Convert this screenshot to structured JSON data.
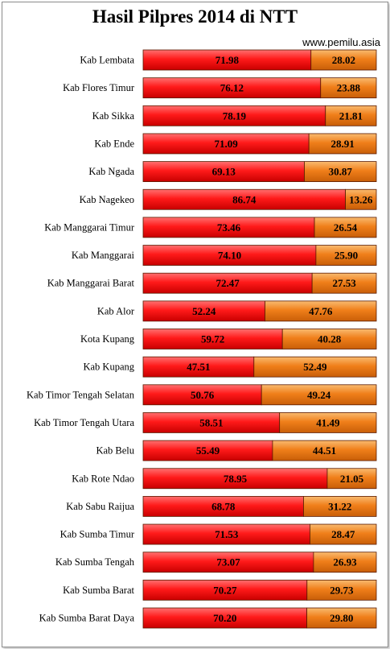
{
  "chart_data": {
    "type": "bar",
    "stacked": true,
    "orientation": "horizontal",
    "title": "Hasil Pilpres 2014 di NTT",
    "source": "www.pemilu.asia",
    "xlim": [
      0,
      100
    ],
    "legend": "none",
    "grid": false,
    "categories": [
      "Kab Lembata",
      "Kab Flores  Timur",
      "Kab Sikka",
      "Kab Ende",
      "Kab Ngada",
      "Kab Nagekeo",
      "Kab Manggarai  Timur",
      "Kab Manggarai",
      "Kab Manggarai  Barat",
      "Kab Alor",
      "Kota Kupang",
      "Kab Kupang",
      "Kab Timor Tengah  Selatan",
      "Kab Timor Tengah  Utara",
      "Kab Belu",
      "Kab Rote Ndao",
      "Kab Sabu  Raijua",
      "Kab Sumba  Timur",
      "Kab Sumba  Tengah",
      "Kab Sumba  Barat",
      "Kab Sumba Barat Daya"
    ],
    "series": [
      {
        "values": [
          71.98,
          76.12,
          78.19,
          71.09,
          69.13,
          86.74,
          73.46,
          74.1,
          72.47,
          52.24,
          59.72,
          47.51,
          50.76,
          58.51,
          55.49,
          78.95,
          68.78,
          71.53,
          73.07,
          70.27,
          70.2
        ],
        "labels": [
          "71.98",
          "76.12",
          "78.19",
          "71.09",
          "69.13",
          "86.74",
          "73.46",
          "74.10",
          "72.47",
          "52.24",
          "59.72",
          "47.51",
          "50.76",
          "58.51",
          "55.49",
          "78.95",
          "68.78",
          "71.53",
          "73.07",
          "70.27",
          "70.20"
        ],
        "color": "#ff1a1a",
        "color_light": "#ff6a6a"
      },
      {
        "values": [
          28.02,
          23.88,
          21.81,
          28.91,
          30.87,
          13.26,
          26.54,
          25.9,
          27.53,
          47.76,
          40.28,
          52.49,
          49.24,
          41.49,
          44.51,
          21.05,
          31.22,
          28.47,
          26.93,
          29.73,
          29.8
        ],
        "labels": [
          "28.02",
          "23.88",
          "21.81",
          "28.91",
          "30.87",
          "13.26",
          "26.54",
          "25.90",
          "27.53",
          "47.76",
          "40.28",
          "52.49",
          "49.24",
          "41.49",
          "44.51",
          "21.05",
          "31.22",
          "28.47",
          "26.93",
          "29.73",
          "29.80"
        ],
        "color": "#f07f1a",
        "color_light": "#f8b060"
      }
    ]
  }
}
